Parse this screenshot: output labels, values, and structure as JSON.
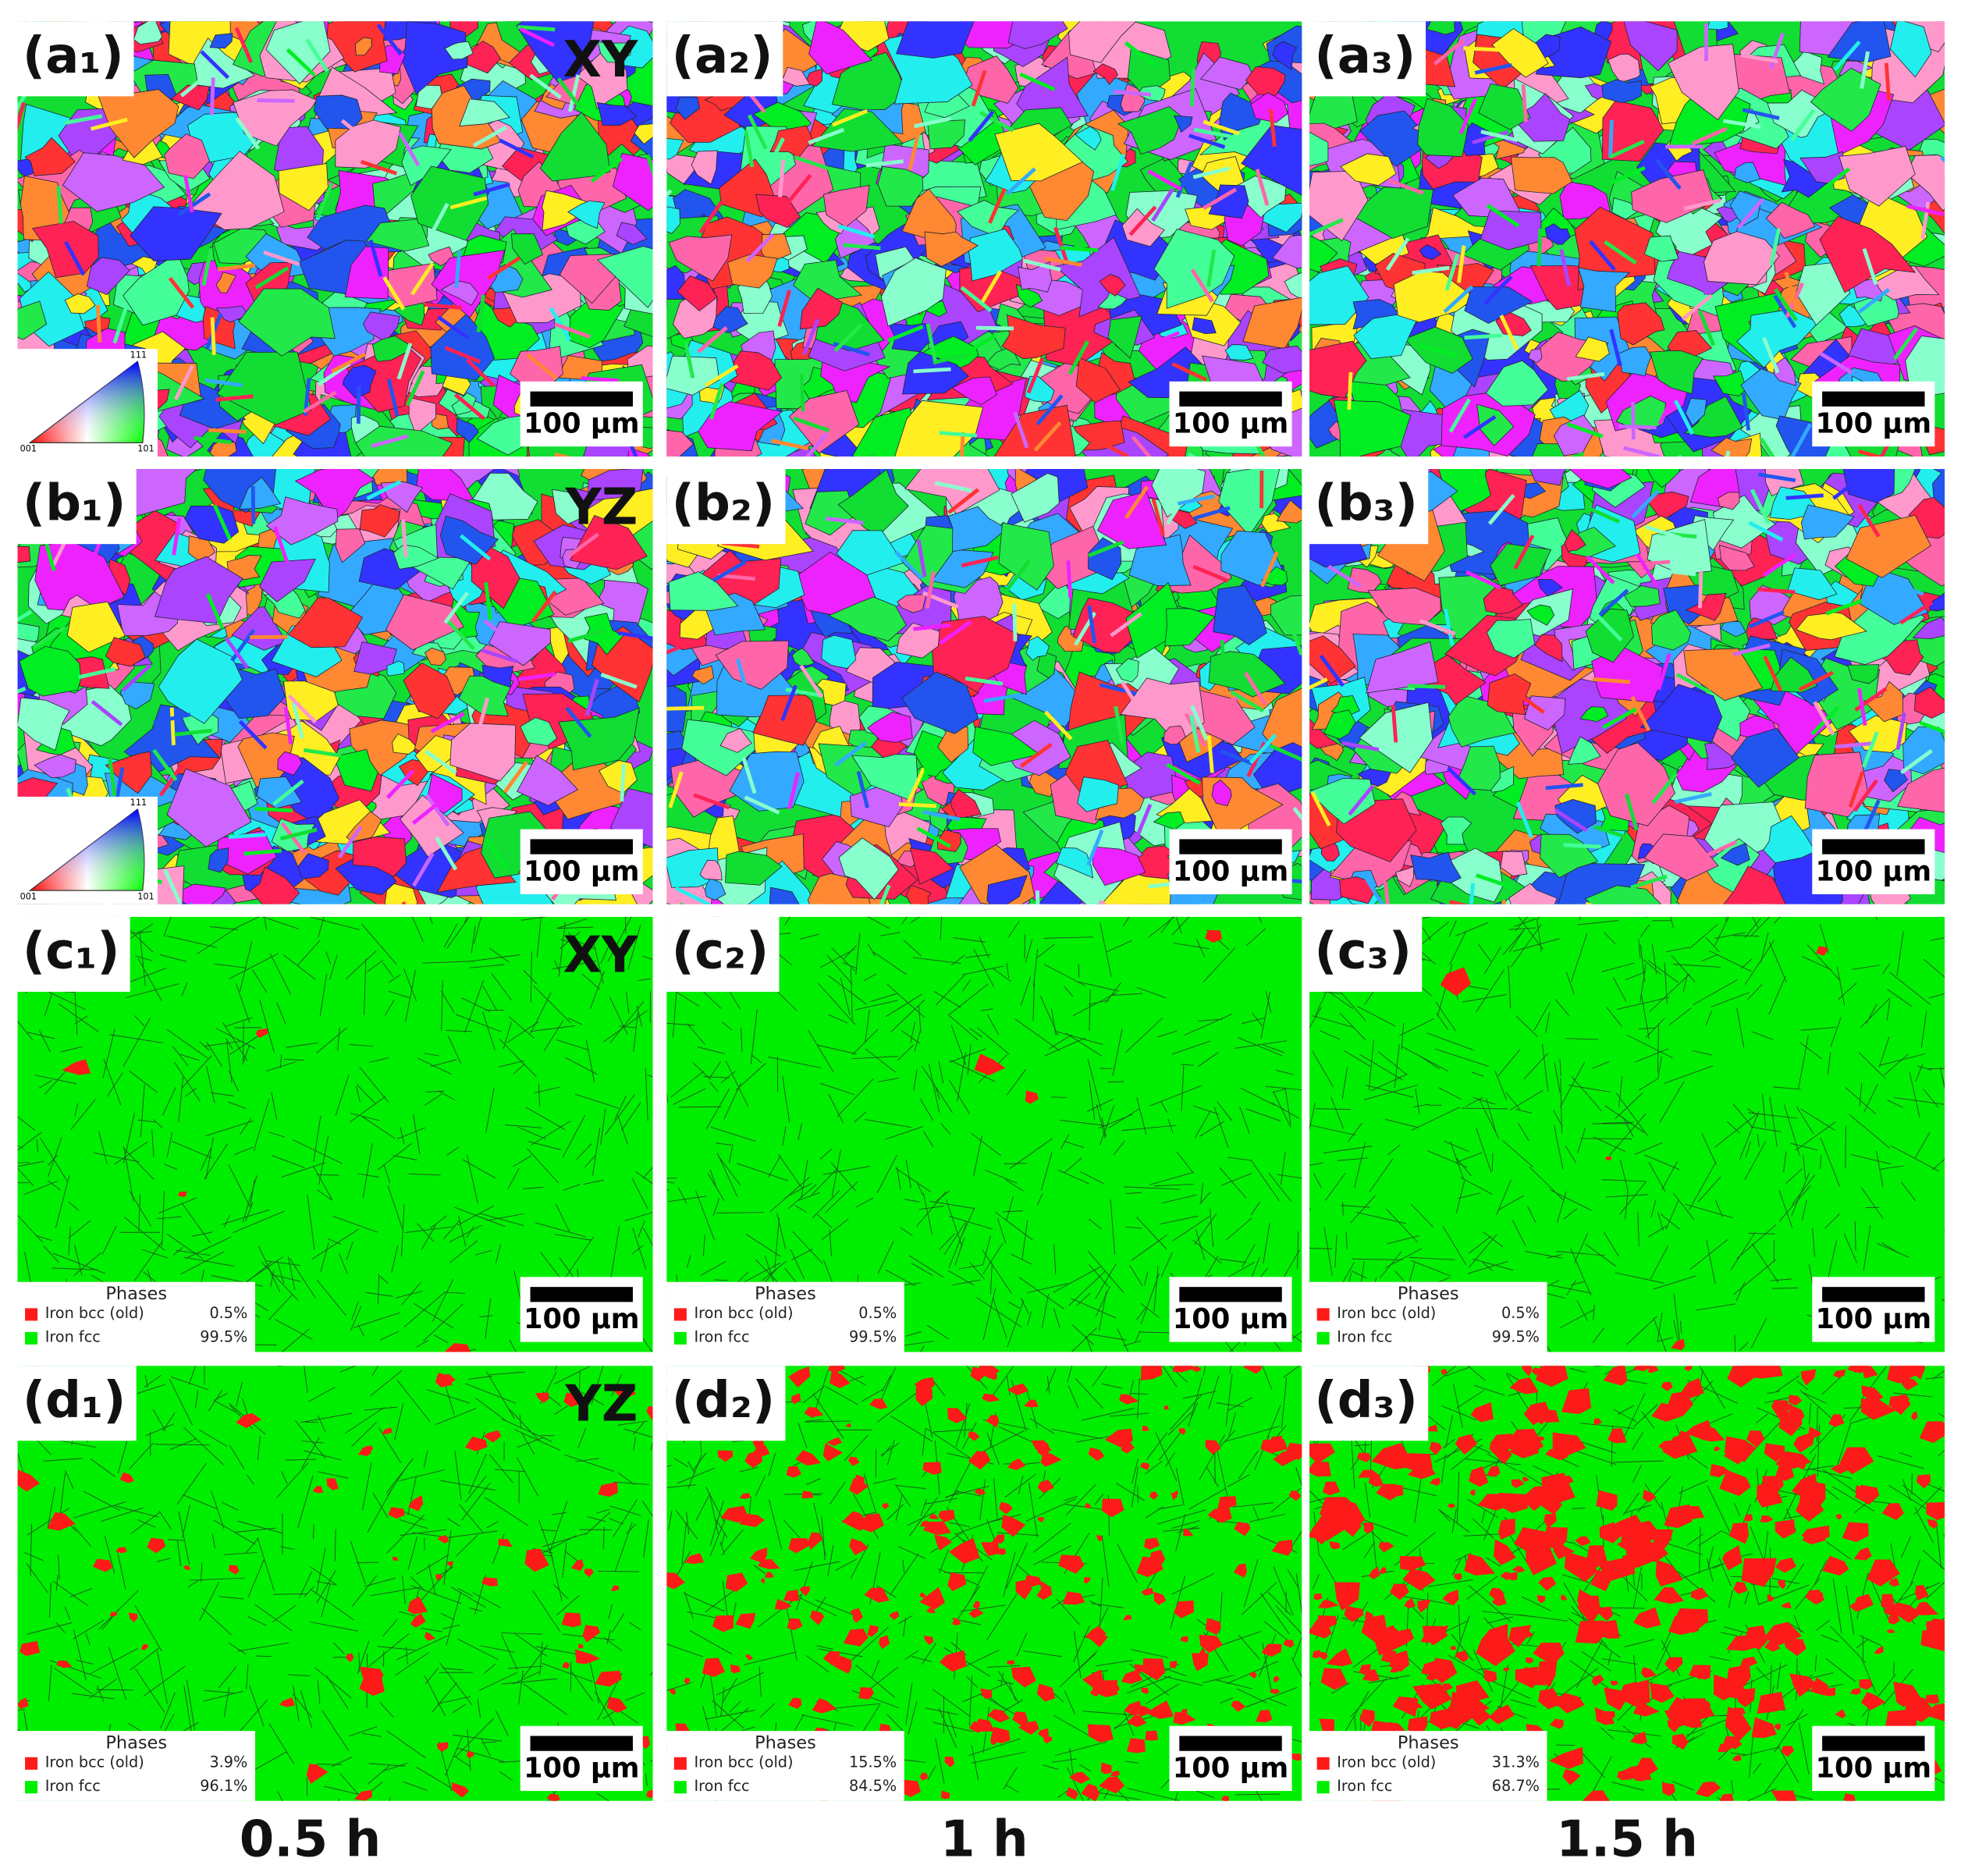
{
  "columns": [
    "0.5 h",
    "1 h",
    "1.5 h"
  ],
  "rows": [
    {
      "kind": "ipf",
      "panels": [
        {
          "label": "(a₁)",
          "direction": "XY",
          "ipf_key": {
            "top": "111",
            "left": "001",
            "right": "101"
          },
          "scale_bar": "100 µm"
        },
        {
          "label": "(a₂)",
          "scale_bar": "100 µm"
        },
        {
          "label": "(a₃)",
          "scale_bar": "100 µm"
        }
      ]
    },
    {
      "kind": "ipf",
      "panels": [
        {
          "label": "(b₁)",
          "direction": "YZ",
          "ipf_key": {
            "top": "111",
            "left": "001",
            "right": "101"
          },
          "scale_bar": "100 µm"
        },
        {
          "label": "(b₂)",
          "scale_bar": "100 µm"
        },
        {
          "label": "(b₃)",
          "scale_bar": "100 µm"
        }
      ]
    },
    {
      "kind": "phase",
      "panels": [
        {
          "label": "(c₁)",
          "direction": "XY",
          "scale_bar": "100 µm",
          "phases": {
            "title": "Phases",
            "items": [
              {
                "name": "Iron bcc (old)",
                "fraction": "0.5%"
              },
              {
                "name": "Iron fcc",
                "fraction": "99.5%"
              }
            ]
          }
        },
        {
          "label": "(c₂)",
          "scale_bar": "100 µm",
          "phases": {
            "title": "Phases",
            "items": [
              {
                "name": "Iron bcc (old)",
                "fraction": "0.5%"
              },
              {
                "name": "Iron fcc",
                "fraction": "99.5%"
              }
            ]
          }
        },
        {
          "label": "(c₃)",
          "scale_bar": "100 µm",
          "phases": {
            "title": "Phases",
            "items": [
              {
                "name": "Iron bcc (old)",
                "fraction": "0.5%"
              },
              {
                "name": "Iron fcc",
                "fraction": "99.5%"
              }
            ]
          }
        }
      ]
    },
    {
      "kind": "phase",
      "panels": [
        {
          "label": "(d₁)",
          "direction": "YZ",
          "scale_bar": "100 µm",
          "phases": {
            "title": "Phases",
            "items": [
              {
                "name": "Iron bcc (old)",
                "fraction": "3.9%"
              },
              {
                "name": "Iron fcc",
                "fraction": "96.1%"
              }
            ]
          }
        },
        {
          "label": "(d₂)",
          "scale_bar": "100 µm",
          "phases": {
            "title": "Phases",
            "items": [
              {
                "name": "Iron bcc (old)",
                "fraction": "15.5%"
              },
              {
                "name": "Iron fcc",
                "fraction": "84.5%"
              }
            ]
          }
        },
        {
          "label": "(d₃)",
          "scale_bar": "100 µm",
          "phases": {
            "title": "Phases",
            "items": [
              {
                "name": "Iron bcc (old)",
                "fraction": "31.3%"
              },
              {
                "name": "Iron fcc",
                "fraction": "68.7%"
              }
            ]
          }
        }
      ]
    }
  ]
}
